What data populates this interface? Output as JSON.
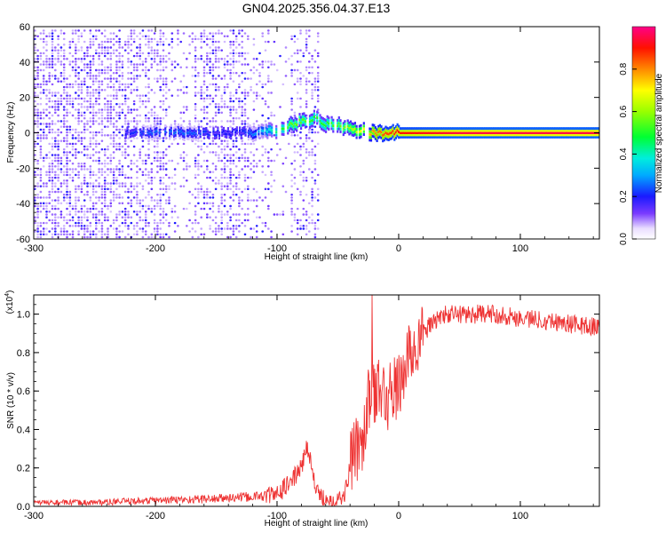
{
  "figure": {
    "title": "GN04.2025.356.04.37.E13"
  },
  "chart_data": [
    {
      "type": "heatmap",
      "xlabel": "Height of straight line (km)",
      "ylabel": "Frequency (Hz)",
      "xlim": [
        -300,
        165
      ],
      "ylim": [
        -60,
        60
      ],
      "xticks": [
        -300,
        -200,
        -100,
        0,
        100
      ],
      "yticks": [
        60,
        40,
        20,
        0,
        -20,
        -40,
        -60
      ],
      "xtick_labels": [
        "-300",
        "-200",
        "-100",
        "0",
        "100"
      ],
      "ytick_labels": [
        "60",
        "40",
        "20",
        "0",
        "-20",
        "-40",
        "-60"
      ],
      "colorbar": {
        "label": "Normalized spectral amplitude",
        "ticks": [
          0.0,
          0.2,
          0.4,
          0.6,
          0.8
        ],
        "tick_labels": [
          "0.0",
          "0.2",
          "0.4",
          "0.6",
          "0.8"
        ],
        "range": [
          0,
          1
        ]
      },
      "trace": {
        "description_points_x": [
          -225,
          -200,
          -175,
          -150,
          -130,
          -115,
          -100,
          -90,
          -80,
          -70,
          -60,
          -50,
          -40,
          -30,
          -20,
          -10,
          0,
          50,
          100,
          165
        ],
        "description_points_y": [
          0,
          0,
          0,
          0,
          0,
          0,
          2,
          4,
          7,
          8,
          5,
          4,
          2,
          1,
          0,
          0,
          0,
          0,
          0,
          0
        ],
        "description_points_amp": [
          0.2,
          0.25,
          0.25,
          0.2,
          0.2,
          0.3,
          0.45,
          0.55,
          0.55,
          0.5,
          0.5,
          0.55,
          0.6,
          0.7,
          0.8,
          0.85,
          0.9,
          0.95,
          0.95,
          0.95
        ]
      },
      "grid": false
    },
    {
      "type": "line",
      "xlabel": "Height of straight line (km)",
      "ylabel": "SNR (10 * v/v)",
      "y_multiplier": "(x10",
      "y_multiplier_exp": "4",
      "y_multiplier_close": ")",
      "xlim": [
        -300,
        165
      ],
      "ylim": [
        0,
        1.1
      ],
      "xticks": [
        -300,
        -200,
        -100,
        0,
        100
      ],
      "yticks": [
        0.0,
        0.2,
        0.4,
        0.6,
        0.8,
        1.0
      ],
      "xtick_labels": [
        "-300",
        "-200",
        "-100",
        "0",
        "100"
      ],
      "ytick_labels": [
        "0.0",
        "0.2",
        "0.4",
        "0.6",
        "0.8",
        "1.0"
      ],
      "series": [
        {
          "color": "#ee3333",
          "x": [
            -300,
            -250,
            -200,
            -150,
            -120,
            -100,
            -90,
            -80,
            -75,
            -72,
            -68,
            -65,
            -60,
            -50,
            -45,
            -40,
            -35,
            -30,
            -25,
            -22,
            -20,
            -15,
            -10,
            -5,
            0,
            5,
            10,
            15,
            20,
            30,
            40,
            60,
            80,
            100,
            120,
            140,
            165
          ],
          "y": [
            0.02,
            0.02,
            0.03,
            0.04,
            0.05,
            0.06,
            0.12,
            0.2,
            0.32,
            0.22,
            0.08,
            0.05,
            0.04,
            0.03,
            0.05,
            0.2,
            0.3,
            0.35,
            0.55,
            0.65,
            0.6,
            0.6,
            0.55,
            0.6,
            0.62,
            0.72,
            0.8,
            0.85,
            0.9,
            0.97,
            1.0,
            1.0,
            1.0,
            0.98,
            0.97,
            0.95,
            0.93
          ]
        }
      ],
      "grid": false
    }
  ]
}
